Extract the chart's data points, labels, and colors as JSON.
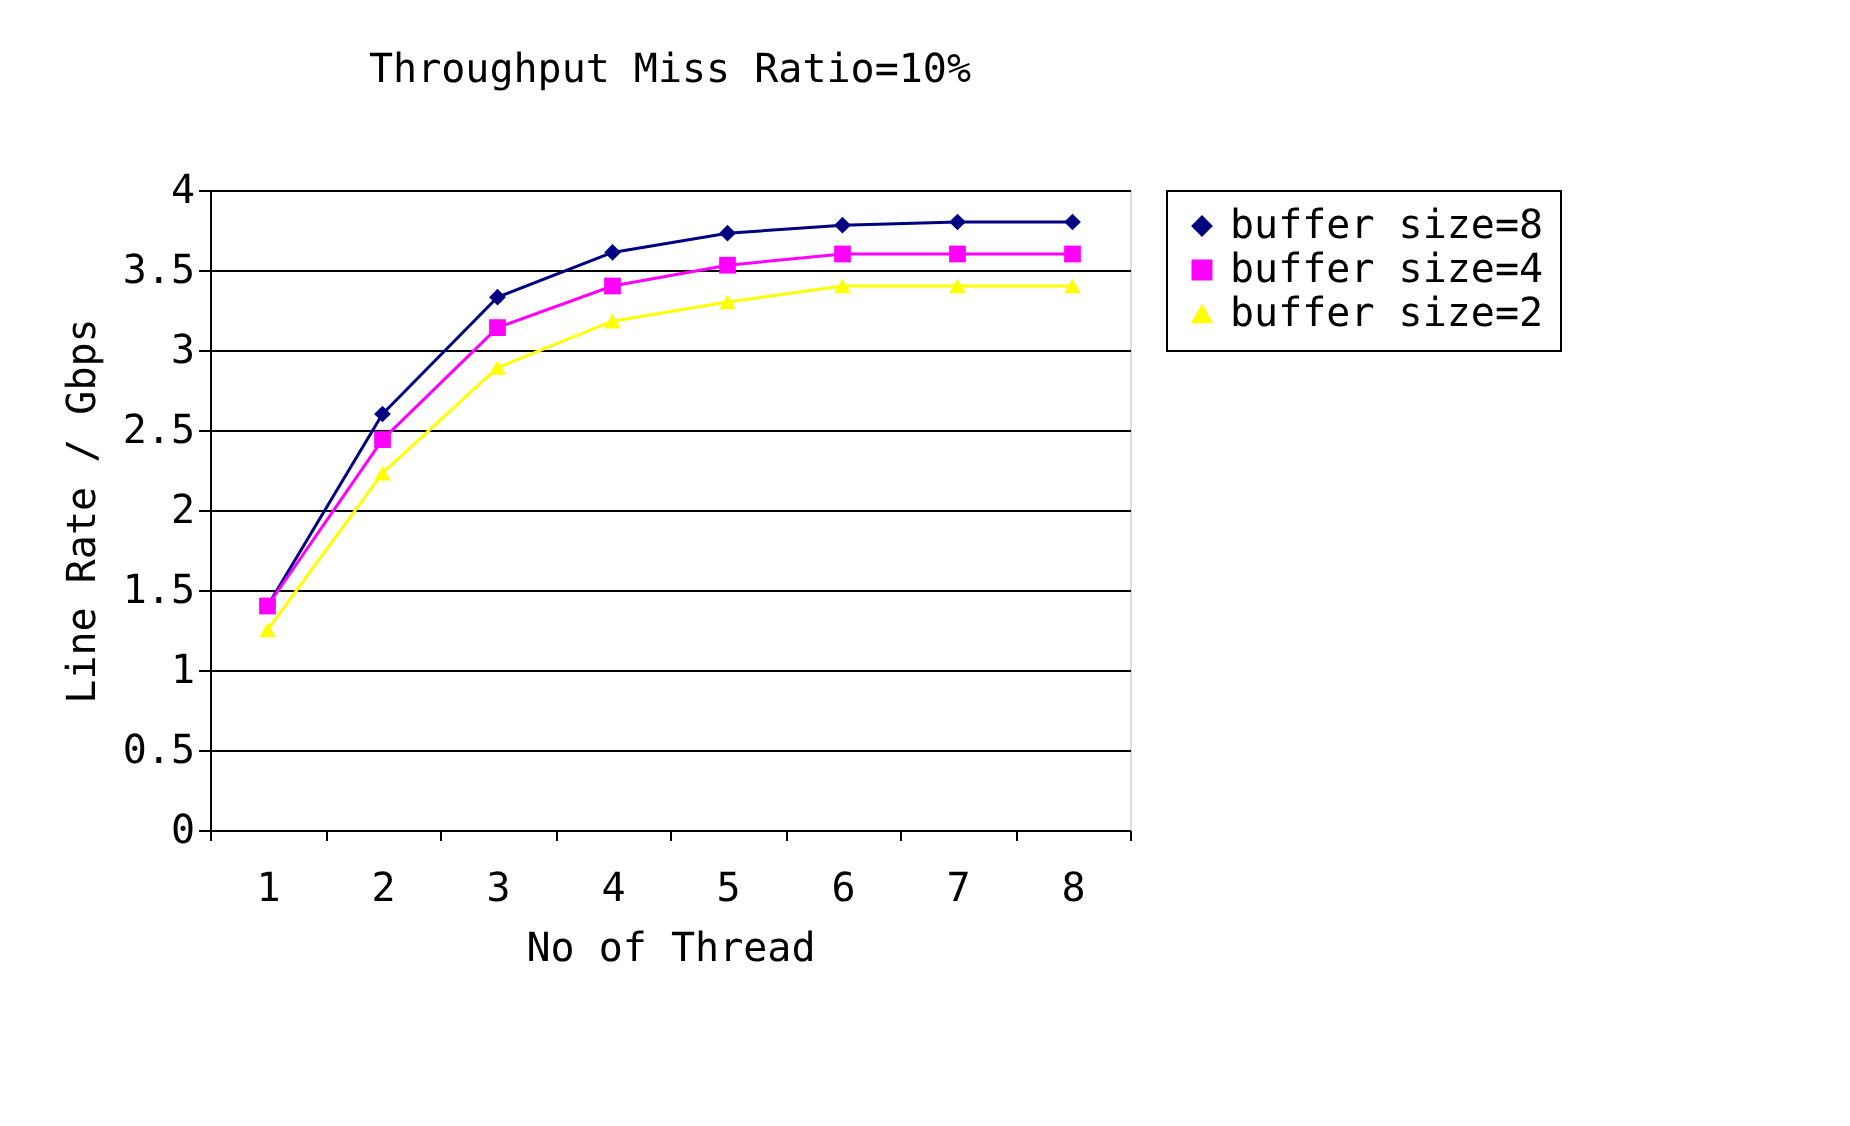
{
  "chart_data": {
    "type": "line",
    "title": "Throughput  Miss Ratio=10%",
    "xlabel": "No of Thread",
    "ylabel": "Line Rate / Gbps",
    "categories": [
      "1",
      "2",
      "3",
      "4",
      "5",
      "6",
      "7",
      "8"
    ],
    "series": [
      {
        "name": "buffer size=8",
        "color": "#000080",
        "marker": "diamond",
        "values": [
          1.4,
          2.6,
          3.33,
          3.61,
          3.73,
          3.78,
          3.8,
          3.8
        ]
      },
      {
        "name": "buffer size=4",
        "color": "#ff00ff",
        "marker": "square",
        "values": [
          1.4,
          2.44,
          3.14,
          3.4,
          3.53,
          3.6,
          3.6,
          3.6
        ]
      },
      {
        "name": "buffer size=2",
        "color": "#ffff00",
        "marker": "triangle",
        "values": [
          1.25,
          2.23,
          2.89,
          3.18,
          3.3,
          3.4,
          3.4,
          3.4
        ]
      }
    ],
    "ylim": [
      0,
      4
    ],
    "yticks": [
      0,
      0.5,
      1,
      1.5,
      2,
      2.5,
      3,
      3.5,
      4
    ],
    "grid": "y",
    "legend": "right",
    "line_style": "solid"
  }
}
